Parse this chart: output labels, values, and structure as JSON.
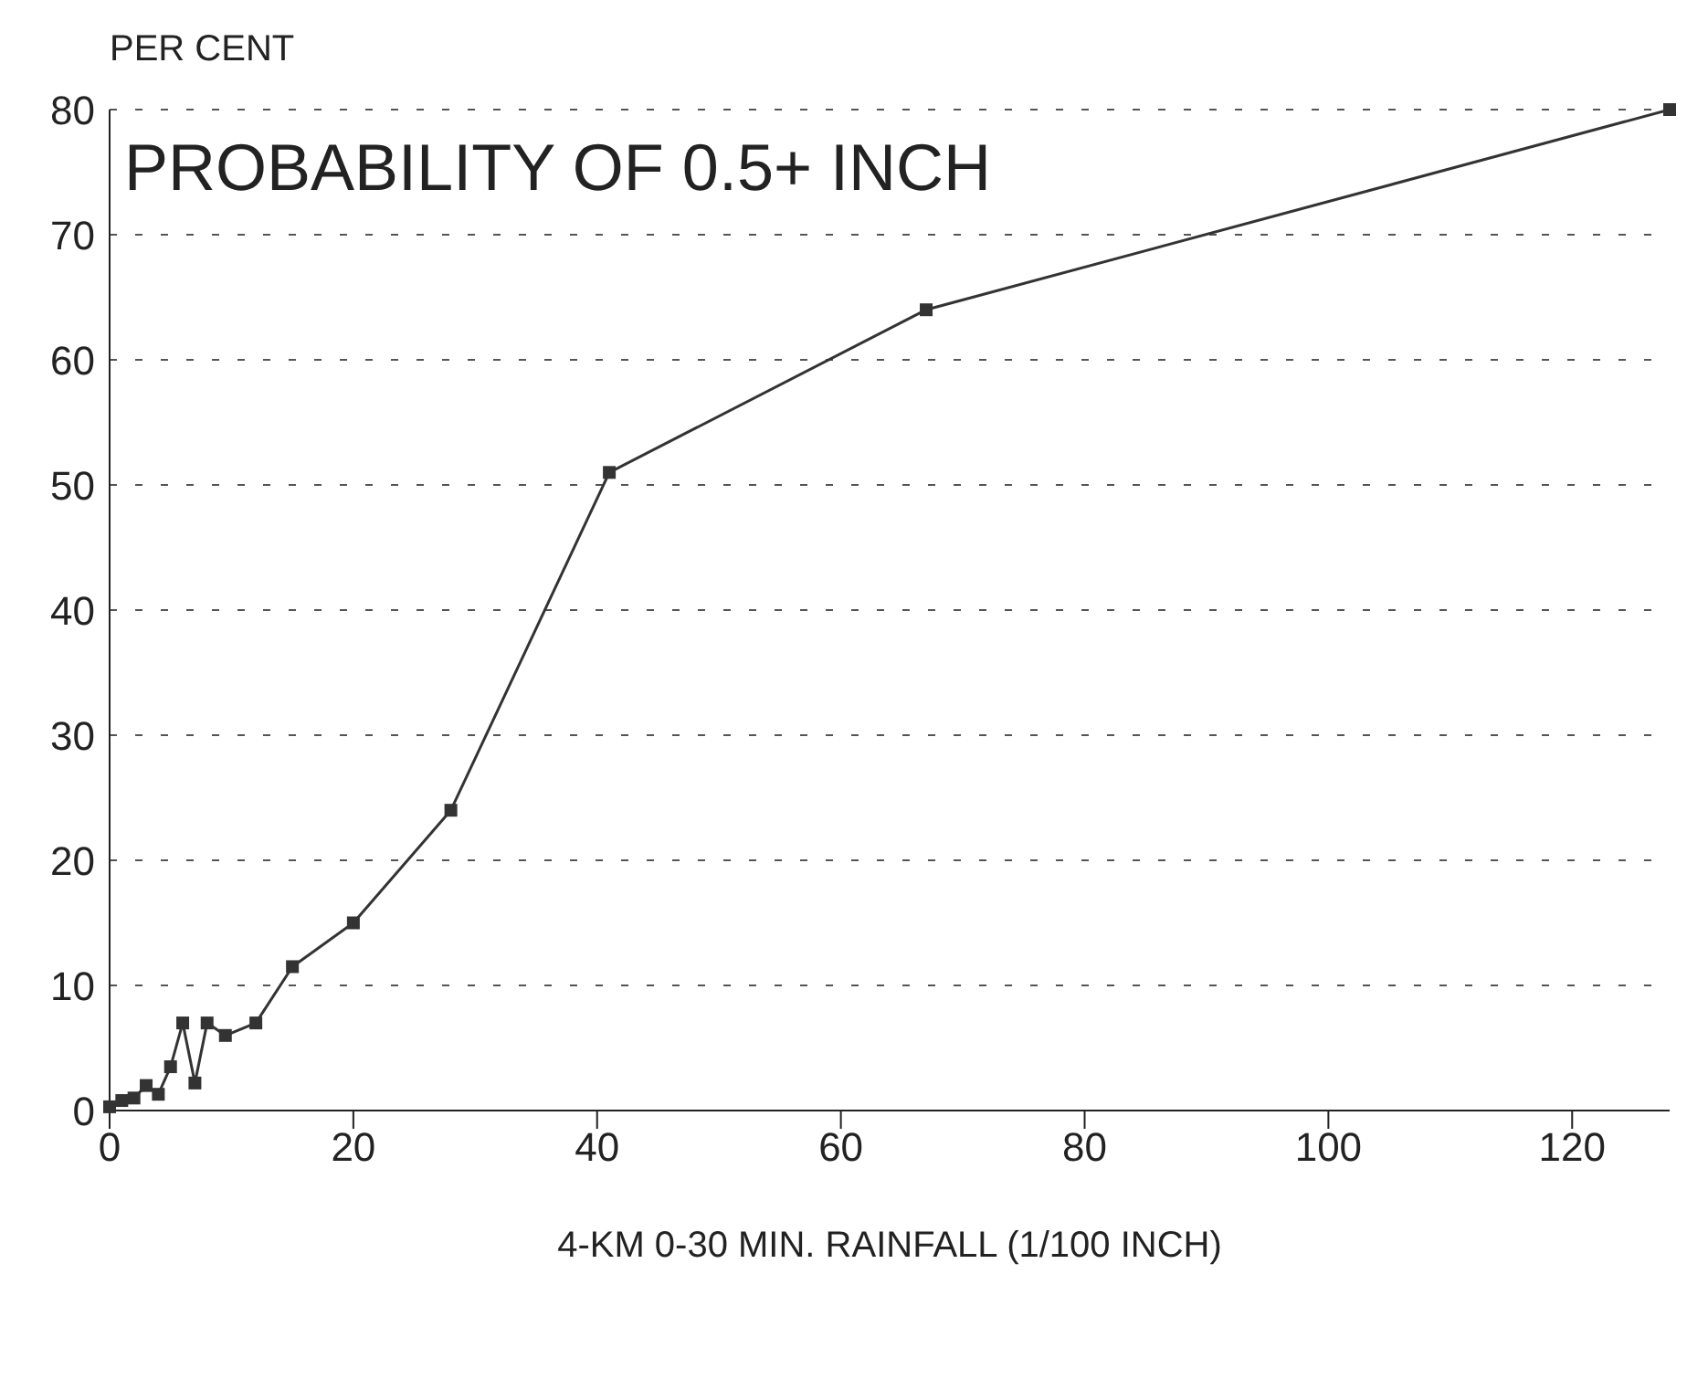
{
  "chart_data": {
    "type": "line",
    "title": "PROBABILITY OF 0.5+ INCH",
    "ylabel": "PER CENT",
    "xlabel": "4-KM 0-30 MIN. RAINFALL (1/100 INCH)",
    "x": [
      0,
      1,
      2,
      3,
      4,
      5,
      6,
      7,
      8,
      9.5,
      12,
      15,
      20,
      28,
      41,
      67,
      128
    ],
    "series": [
      {
        "color": "#333333",
        "values": [
          0.3,
          0.8,
          1,
          2,
          1.3,
          3.5,
          7,
          2.2,
          7,
          6,
          7,
          11.5,
          15,
          24,
          51,
          64,
          80
        ]
      }
    ],
    "xlim": [
      0,
      128
    ],
    "xticks": [
      0,
      20,
      40,
      60,
      80,
      100,
      120
    ],
    "ylim": [
      0,
      80
    ],
    "yticks": [
      0,
      10,
      20,
      30,
      40,
      50,
      60,
      70,
      80
    ],
    "grid": "y",
    "marker": "square",
    "line_style": "solid"
  }
}
